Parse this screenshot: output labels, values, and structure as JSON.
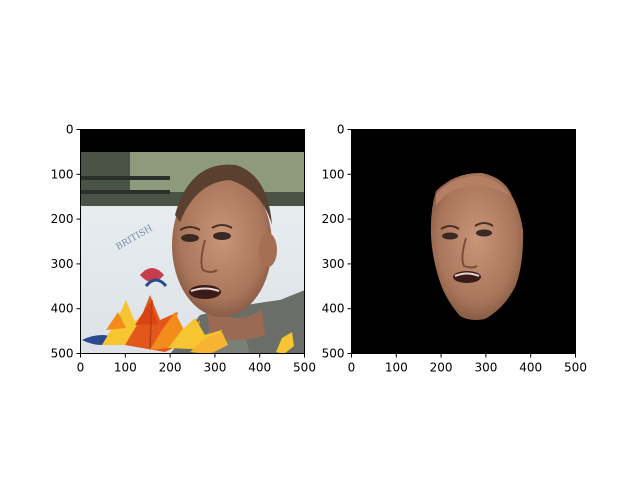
{
  "chart_data": [
    {
      "type": "image",
      "title": "",
      "xlabel": "",
      "ylabel": "",
      "xlim": [
        0,
        500
      ],
      "ylim": [
        500,
        0
      ],
      "xticks": [
        0,
        100,
        200,
        300,
        400,
        500
      ],
      "yticks": [
        0,
        100,
        200,
        300,
        400,
        500
      ],
      "content": "photo-with-leaves"
    },
    {
      "type": "image",
      "title": "",
      "xlabel": "",
      "ylabel": "",
      "xlim": [
        0,
        500
      ],
      "ylim": [
        500,
        0
      ],
      "xticks": [
        0,
        100,
        200,
        300,
        400,
        500
      ],
      "yticks": [
        0,
        100,
        200,
        300,
        400,
        500
      ],
      "content": "face-mask-on-black"
    }
  ],
  "colors": {
    "background": "#ffffff",
    "axis": "#000000",
    "mask_background": "#000000",
    "leaf_orange": "#f28c1b",
    "leaf_yellow": "#f7c531",
    "leaf_red": "#e2571c"
  }
}
